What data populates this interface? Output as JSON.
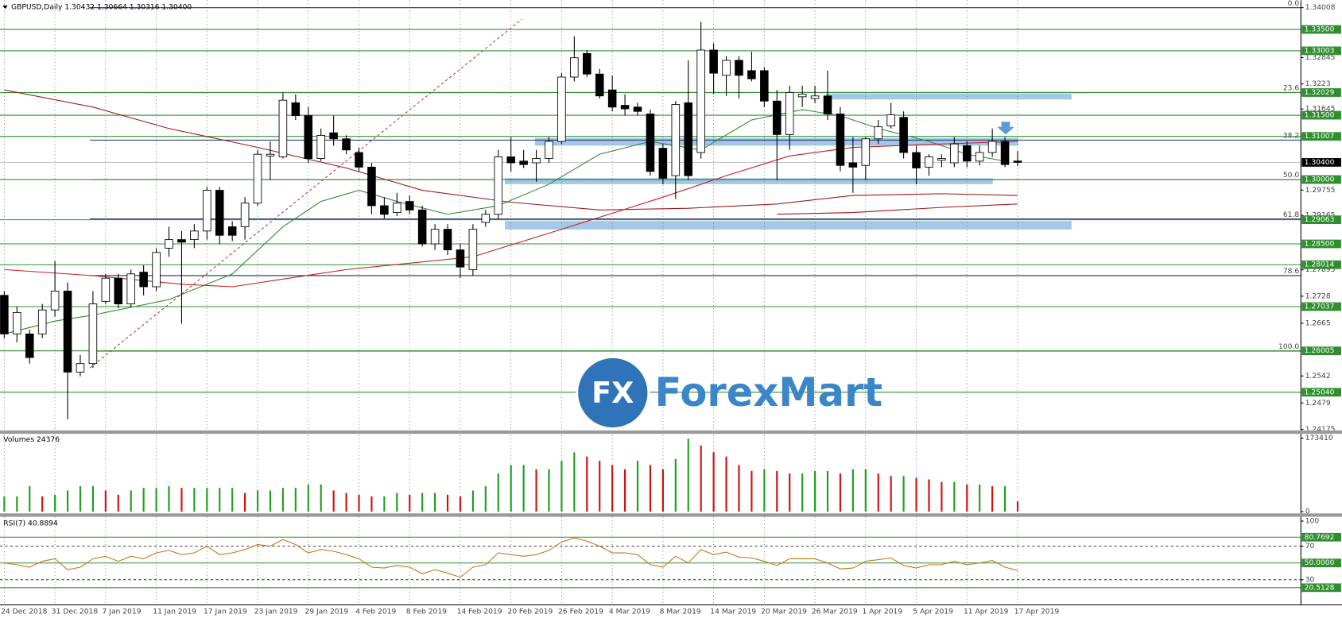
{
  "chart_data": [
    {
      "type": "candlestick",
      "title": "GBPUSD,Daily  1.30432 1.30664 1.30316 1.30400",
      "categories": [
        "24 Dec 2018",
        null,
        null,
        null,
        "31 Dec 2018",
        null,
        null,
        null,
        "7 Jan 2019",
        null,
        null,
        null,
        "11 Jan 2019",
        null,
        null,
        null,
        "17 Jan 2019",
        null,
        null,
        null,
        "23 Jan 2019",
        null,
        null,
        null,
        "29 Jan 2019",
        null,
        null,
        null,
        "4 Feb 2019",
        null,
        null,
        null,
        "8 Feb 2019",
        null,
        null,
        null,
        "14 Feb 2019",
        null,
        null,
        null,
        "20 Feb 2019",
        null,
        null,
        null,
        "26 Feb 2019",
        null,
        null,
        null,
        "4 Mar 2019",
        null,
        null,
        null,
        "8 Mar 2019",
        null,
        null,
        null,
        "14 Mar 2019",
        null,
        null,
        null,
        "20 Mar 2019",
        null,
        null,
        null,
        "26 Mar 2019",
        null,
        null,
        null,
        "1 Apr 2019",
        null,
        null,
        null,
        "5 Apr 2019",
        null,
        null,
        null,
        "11 Apr 2019",
        null,
        null,
        null,
        "17 Apr 2019"
      ],
      "open": [
        1.273,
        1.264,
        1.264,
        1.264,
        1.2696,
        1.274,
        1.2551,
        1.2571,
        1.2716,
        1.277,
        1.271,
        1.2784,
        1.275,
        1.284,
        1.286,
        1.286,
        1.288,
        1.2975,
        1.289,
        1.289,
        1.2945,
        1.3055,
        1.3053,
        1.3179,
        1.3149,
        1.3049,
        1.3109,
        1.3095,
        1.3063,
        1.3029,
        1.2939,
        1.2923,
        1.2949,
        1.2929,
        1.285,
        1.2884,
        1.2836,
        1.279,
        1.29,
        1.2919,
        1.3053,
        1.3043,
        1.3039,
        1.3049,
        1.3089,
        1.3239,
        1.3294,
        1.3246,
        1.3209,
        1.3173,
        1.3169,
        1.3153,
        1.3073,
        1.3009,
        1.3179,
        1.3063,
        1.3302,
        1.3243,
        1.3278,
        1.3254,
        1.3254,
        1.3183,
        1.3105,
        1.3193,
        1.3189,
        1.3195,
        1.3153,
        1.3039,
        1.3033,
        1.3095,
        1.3125,
        1.3145,
        1.3063,
        1.3029,
        1.3045,
        1.3039,
        1.3079,
        1.3043,
        1.3063,
        1.3089,
        1.30432
      ],
      "high": [
        1.274,
        1.2704,
        1.265,
        1.271,
        1.281,
        1.276,
        1.2591,
        1.274,
        1.278,
        1.278,
        1.279,
        1.28,
        1.284,
        1.289,
        1.288,
        1.2896,
        1.2983,
        1.2983,
        1.2903,
        1.2959,
        1.3069,
        1.3089,
        1.3203,
        1.3199,
        1.3169,
        1.3119,
        1.3149,
        1.3103,
        1.3075,
        1.3039,
        1.2959,
        1.2969,
        1.2963,
        1.2939,
        1.2896,
        1.2896,
        1.285,
        1.2896,
        1.2929,
        1.3069,
        1.3099,
        1.3069,
        1.3069,
        1.3099,
        1.3248,
        1.3334,
        1.3302,
        1.3258,
        1.3243,
        1.3199,
        1.3179,
        1.3163,
        1.3083,
        1.3183,
        1.3278,
        1.3368,
        1.3318,
        1.3288,
        1.3288,
        1.3298,
        1.3262,
        1.3209,
        1.3219,
        1.3219,
        1.3219,
        1.3254,
        1.3169,
        1.3099,
        1.3099,
        1.3139,
        1.3179,
        1.3159,
        1.3079,
        1.3059,
        1.3059,
        1.3099,
        1.3089,
        1.3079,
        1.3119,
        1.3099,
        1.30664
      ],
      "low": [
        1.263,
        1.262,
        1.2571,
        1.263,
        1.268,
        1.2441,
        1.2541,
        1.2561,
        1.271,
        1.27,
        1.2704,
        1.273,
        1.274,
        1.282,
        1.2664,
        1.284,
        1.286,
        1.285,
        1.2856,
        1.286,
        1.2939,
        1.2999,
        1.3049,
        1.3139,
        1.3039,
        1.3043,
        1.3079,
        1.3059,
        1.3019,
        1.2919,
        1.2909,
        1.2915,
        1.2919,
        1.2844,
        1.2836,
        1.2824,
        1.277,
        1.2776,
        1.289,
        1.2909,
        1.3019,
        1.3027,
        1.2995,
        1.3039,
        1.3083,
        1.3229,
        1.3239,
        1.3189,
        1.3159,
        1.3149,
        1.3149,
        1.3009,
        1.2989,
        1.2955,
        1.2999,
        1.3049,
        1.3199,
        1.3195,
        1.3189,
        1.3229,
        1.3169,
        1.2999,
        1.3069,
        1.3169,
        1.3179,
        1.3139,
        1.3019,
        1.2969,
        1.2999,
        1.3083,
        1.3119,
        1.3049,
        1.2989,
        1.3009,
        1.3029,
        1.3029,
        1.3029,
        1.3033,
        1.3053,
        1.3029,
        1.30316
      ],
      "close": [
        1.264,
        1.269,
        1.2585,
        1.2696,
        1.274,
        1.2551,
        1.2571,
        1.271,
        1.277,
        1.271,
        1.278,
        1.275,
        1.283,
        1.286,
        1.2854,
        1.288,
        1.2975,
        1.287,
        1.287,
        1.2945,
        1.3059,
        1.3059,
        1.3185,
        1.3149,
        1.3049,
        1.3103,
        1.3095,
        1.3069,
        1.3029,
        1.2939,
        1.2919,
        1.2945,
        1.2929,
        1.285,
        1.2884,
        1.2836,
        1.2796,
        1.2884,
        1.2919,
        1.3053,
        1.3039,
        1.3035,
        1.3049,
        1.3089,
        1.3239,
        1.3284,
        1.3246,
        1.3195,
        1.3169,
        1.3165,
        1.3159,
        1.3019,
        1.3003,
        1.3175,
        1.3009,
        1.3302,
        1.3248,
        1.3278,
        1.3243,
        1.3235,
        1.3183,
        1.3105,
        1.3203,
        1.3199,
        1.3195,
        1.3153,
        1.3033,
        1.3029,
        1.3095,
        1.3123,
        1.3151,
        1.3063,
        1.3027,
        1.3053,
        1.3049,
        1.3083,
        1.3043,
        1.3063,
        1.3089,
        1.3035,
        1.304
      ],
      "up_color": "#ffffff",
      "down_color": "#000000",
      "ylim": [
        1.2415,
        1.3418
      ],
      "yticks": [
        1.34008,
        1.32845,
        1.3223,
        1.31645,
        1.29755,
        1.29165,
        1.27895,
        1.2728,
        1.2665,
        1.2542,
        1.2479,
        1.24175
      ],
      "levels": [
        {
          "value": 1.335,
          "label": "1.33500"
        },
        {
          "value": 1.33003,
          "label": "1.33003"
        },
        {
          "value": 1.32029,
          "label": "1.32029"
        },
        {
          "value": 1.315,
          "label": "1.31500"
        },
        {
          "value": 1.31007,
          "label": "1.31007"
        },
        {
          "value": 1.3,
          "label": "1.30000"
        },
        {
          "value": 1.29063,
          "label": "1.29063"
        },
        {
          "value": 1.285,
          "label": "1.28500"
        },
        {
          "value": 1.28014,
          "label": "1.28014"
        },
        {
          "value": 1.27037,
          "label": "1.27037"
        },
        {
          "value": 1.26005,
          "label": "1.26005"
        },
        {
          "value": 1.2504,
          "label": "1.25040"
        }
      ],
      "level_color": "#2f8f2f",
      "current": {
        "value": 1.304,
        "label": "1.30400"
      },
      "fib_levels": [
        {
          "price": 1.34008,
          "label": "0.0"
        },
        {
          "price": 1.3203,
          "label": "23.6"
        },
        {
          "price": 1.3092,
          "label": "38.2"
        },
        {
          "price": 1.3,
          "label": "50.0"
        },
        {
          "price": 1.2908,
          "label": "61.8"
        },
        {
          "price": 1.2776,
          "label": "78.6"
        },
        {
          "price": 1.26,
          "label": "100.0"
        }
      ],
      "fib_color": "#1c2b6b",
      "moving_averages": [
        {
          "color": "#2e8b2e",
          "x": [
            0,
            4,
            7,
            13,
            18,
            22,
            25,
            28,
            31,
            35,
            39,
            43,
            47,
            51,
            55,
            59,
            63,
            66,
            69,
            73,
            76,
            79
          ],
          "values": [
            1.264,
            1.267,
            1.2684,
            1.272,
            1.278,
            1.289,
            1.2949,
            1.2975,
            1.2949,
            1.2919,
            1.2939,
            1.2989,
            1.3059,
            1.3089,
            1.3069,
            1.3139,
            1.3163,
            1.3149,
            1.3119,
            1.3089,
            1.3059,
            1.3043
          ]
        },
        {
          "color": "#9b1c1c",
          "x": [
            0,
            7,
            13,
            20,
            27,
            33,
            40,
            47,
            54,
            61,
            67,
            74,
            80
          ],
          "values": [
            1.3209,
            1.3169,
            1.3119,
            1.3075,
            1.3027,
            1.2975,
            1.2947,
            1.2929,
            1.2933,
            1.2943,
            1.2963,
            1.2967,
            1.2963
          ]
        },
        {
          "color": "#c02020",
          "x": [
            0,
            7,
            14,
            18,
            27,
            37,
            44,
            52,
            57,
            62,
            67,
            74,
            80
          ],
          "values": [
            1.279,
            1.2776,
            1.2756,
            1.275,
            1.279,
            1.282,
            1.2884,
            1.2959,
            1.3009,
            1.3055,
            1.3075,
            1.3083,
            1.3089
          ]
        },
        {
          "color": "#a01818",
          "x": [
            61,
            67,
            74,
            80
          ],
          "values": [
            1.2919,
            1.2923,
            1.2935,
            1.2943
          ]
        }
      ],
      "grid": true,
      "logo": "FX",
      "watermark": "ForexMart"
    },
    {
      "type": "volume",
      "title": "Volumes 24376",
      "values": [
        36000,
        36000,
        60000,
        36000,
        40000,
        50000,
        60000,
        60000,
        50000,
        40000,
        50000,
        56000,
        56000,
        60000,
        56000,
        56000,
        56000,
        56000,
        56000,
        44000,
        50000,
        50000,
        56000,
        56000,
        64000,
        64000,
        50000,
        44000,
        40000,
        36000,
        36000,
        44000,
        40000,
        44000,
        44000,
        40000,
        36000,
        50000,
        60000,
        90000,
        110000,
        110000,
        100000,
        100000,
        120000,
        140000,
        130000,
        120000,
        110000,
        100000,
        120000,
        110000,
        100000,
        124000,
        172000,
        156000,
        140000,
        130000,
        110000,
        96000,
        100000,
        96000,
        90000,
        90000,
        96000,
        96000,
        90000,
        100000,
        100000,
        90000,
        84000,
        84000,
        80000,
        76000,
        70000,
        70000,
        64000,
        64000,
        60000,
        60000,
        24376
      ],
      "up_color": "#1f9e1f",
      "down_color": "#d01010",
      "ylim": [
        0,
        173410
      ],
      "yticks": [
        173410,
        0
      ]
    },
    {
      "type": "line",
      "title": "RSI(7) 40.8894",
      "values": [
        50,
        48,
        45,
        52,
        55,
        42,
        45,
        55,
        58,
        52,
        58,
        55,
        62,
        65,
        60,
        62,
        70,
        60,
        62,
        66,
        72,
        70,
        78,
        72,
        62,
        66,
        64,
        60,
        55,
        45,
        44,
        47,
        45,
        37,
        42,
        38,
        33,
        45,
        48,
        62,
        60,
        58,
        60,
        65,
        75,
        80,
        76,
        70,
        62,
        62,
        60,
        48,
        45,
        58,
        50,
        66,
        60,
        63,
        57,
        56,
        52,
        47,
        55,
        55,
        55,
        50,
        43,
        44,
        52,
        54,
        56,
        47,
        44,
        48,
        48,
        52,
        48,
        50,
        53,
        45,
        40.8894
      ],
      "color": "#c8741e",
      "ylim": [
        0,
        100
      ],
      "yticks": [
        100,
        70,
        30
      ],
      "levels": [
        80.7692,
        {
          "value": 50,
          "label": "50.0000"
        },
        20.5128
      ],
      "level_color": "#2f8f2f"
    }
  ]
}
